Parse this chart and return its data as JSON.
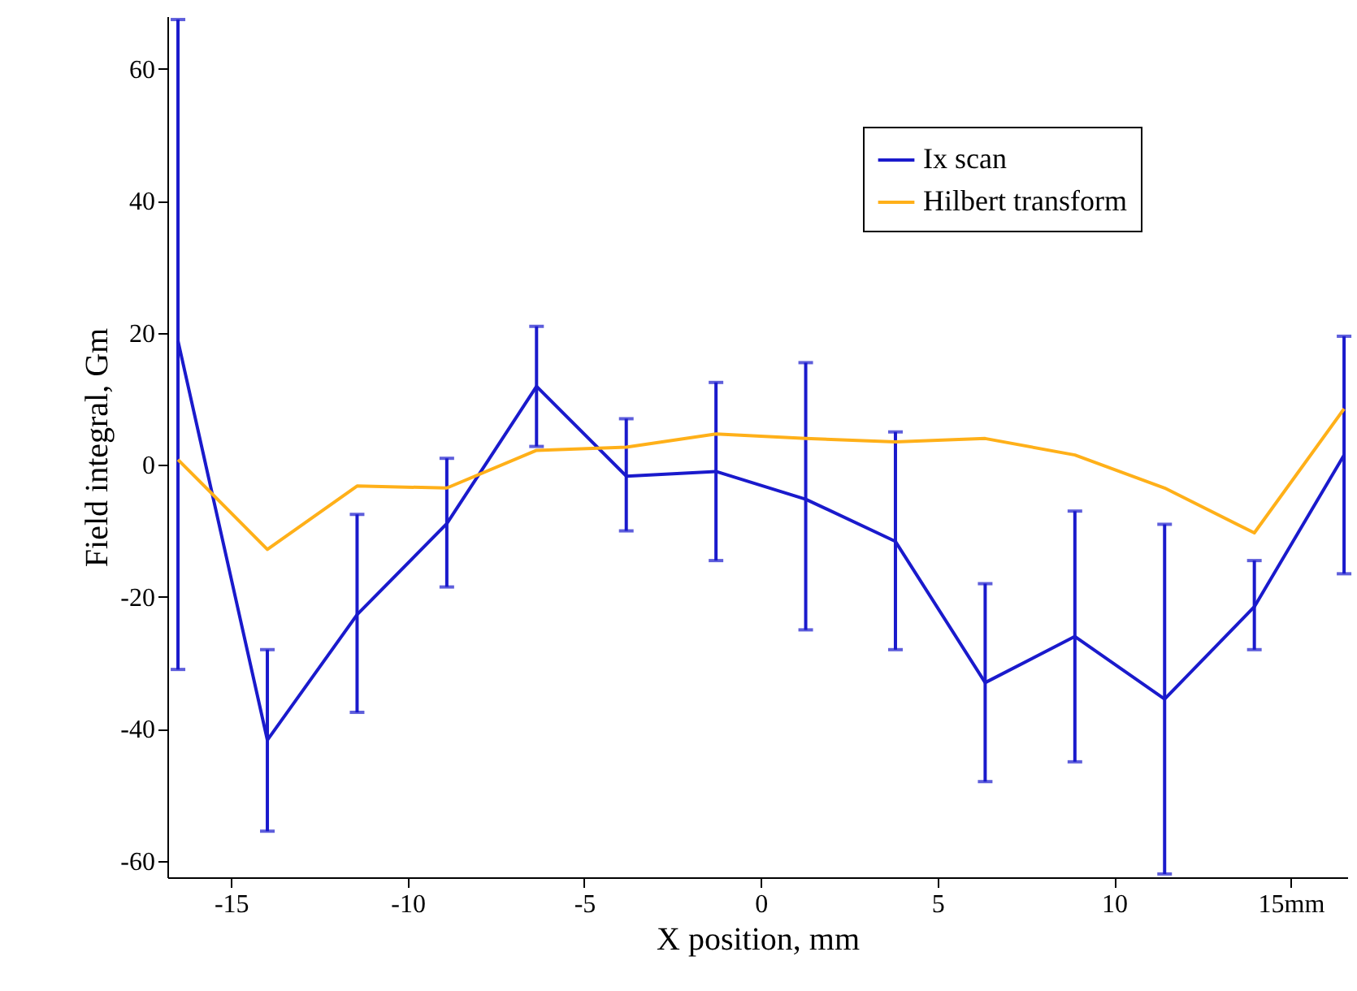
{
  "chart_data": {
    "type": "line",
    "xlabel": "X position, mm",
    "ylabel": "Field integral, Gm",
    "x": [
      -16.5,
      -13.97,
      -11.43,
      -8.89,
      -6.35,
      -3.81,
      -1.27,
      1.27,
      3.81,
      6.35,
      8.89,
      11.43,
      13.97,
      16.51
    ],
    "series": [
      {
        "name": "Ix scan",
        "color": "#1a1acc",
        "values": [
          18.8,
          -41.7,
          -22.7,
          -8.9,
          11.9,
          -1.7,
          -1,
          -5.2,
          -11.6,
          -33,
          -26,
          -35.5,
          -21.5,
          1.5
        ],
        "errors": [
          [
            -31,
            67.5
          ],
          [
            -55.5,
            -28
          ],
          [
            -37.5,
            -7.5
          ],
          [
            -18.5,
            1
          ],
          [
            2.8,
            21
          ],
          [
            -10,
            7
          ],
          [
            -14.5,
            12.5
          ],
          [
            -25,
            15.5
          ],
          [
            -28,
            5
          ],
          [
            -48,
            -18
          ],
          [
            -45,
            -7
          ],
          [
            -62,
            -9
          ],
          [
            -28,
            -14.5
          ],
          [
            -16.5,
            19.5
          ]
        ]
      },
      {
        "name": "Hilbert transform",
        "color": "#ffb019",
        "values": [
          0.8,
          -12.8,
          -3.2,
          -3.5,
          2.2,
          2.7,
          4.7,
          4,
          3.5,
          4,
          1.5,
          -3.5,
          -10.3,
          8.5
        ]
      }
    ],
    "xlim": [
      -16.8,
      16.6
    ],
    "xticks": [
      -15,
      -10,
      -5,
      0,
      5,
      10,
      {
        "value": 15,
        "label": "15mm"
      }
    ],
    "ylim": [
      -62.5,
      68
    ],
    "yticks": [
      -60,
      -40,
      -20,
      0,
      20,
      40,
      60
    ],
    "grid": false,
    "legend": "top right"
  }
}
